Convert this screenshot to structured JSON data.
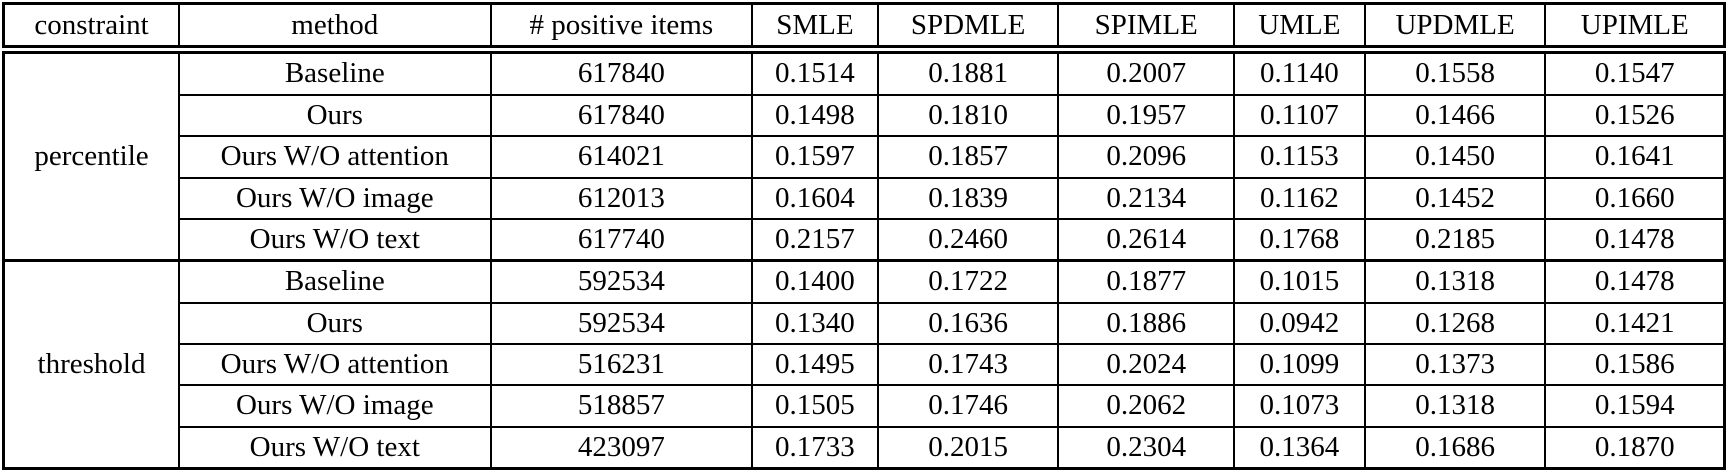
{
  "table": {
    "columns": [
      "constraint",
      "method",
      "# positive items",
      "SMLE",
      "SPDMLE",
      "SPIMLE",
      "UMLE",
      "UPDMLE",
      "UPIMLE"
    ],
    "groups": [
      {
        "constraint": "percentile",
        "rows": [
          {
            "method": "Baseline",
            "positive_items": "617840",
            "values": [
              "0.1514",
              "0.1881",
              "0.2007",
              "0.1140",
              "0.1558",
              "0.1547"
            ]
          },
          {
            "method": "Ours",
            "positive_items": "617840",
            "values": [
              "0.1498",
              "0.1810",
              "0.1957",
              "0.1107",
              "0.1466",
              "0.1526"
            ]
          },
          {
            "method": "Ours W/O attention",
            "positive_items": "614021",
            "values": [
              "0.1597",
              "0.1857",
              "0.2096",
              "0.1153",
              "0.1450",
              "0.1641"
            ]
          },
          {
            "method": "Ours W/O image",
            "positive_items": "612013",
            "values": [
              "0.1604",
              "0.1839",
              "0.2134",
              "0.1162",
              "0.1452",
              "0.1660"
            ]
          },
          {
            "method": "Ours W/O text",
            "positive_items": "617740",
            "values": [
              "0.2157",
              "0.2460",
              "0.2614",
              "0.1768",
              "0.2185",
              "0.1478"
            ]
          }
        ]
      },
      {
        "constraint": "threshold",
        "rows": [
          {
            "method": "Baseline",
            "positive_items": "592534",
            "values": [
              "0.1400",
              "0.1722",
              "0.1877",
              "0.1015",
              "0.1318",
              "0.1478"
            ]
          },
          {
            "method": "Ours",
            "positive_items": "592534",
            "values": [
              "0.1340",
              "0.1636",
              "0.1886",
              "0.0942",
              "0.1268",
              "0.1421"
            ]
          },
          {
            "method": "Ours W/O attention",
            "positive_items": "516231",
            "values": [
              "0.1495",
              "0.1743",
              "0.2024",
              "0.1099",
              "0.1373",
              "0.1586"
            ]
          },
          {
            "method": "Ours W/O image",
            "positive_items": "518857",
            "values": [
              "0.1505",
              "0.1746",
              "0.2062",
              "0.1073",
              "0.1318",
              "0.1594"
            ]
          },
          {
            "method": "Ours W/O text",
            "positive_items": "423097",
            "values": [
              "0.1733",
              "0.2015",
              "0.2304",
              "0.1364",
              "0.1686",
              "0.1870"
            ]
          }
        ]
      }
    ],
    "colors": {
      "border": "#000000",
      "text": "#000000",
      "background": "#ffffff"
    }
  }
}
